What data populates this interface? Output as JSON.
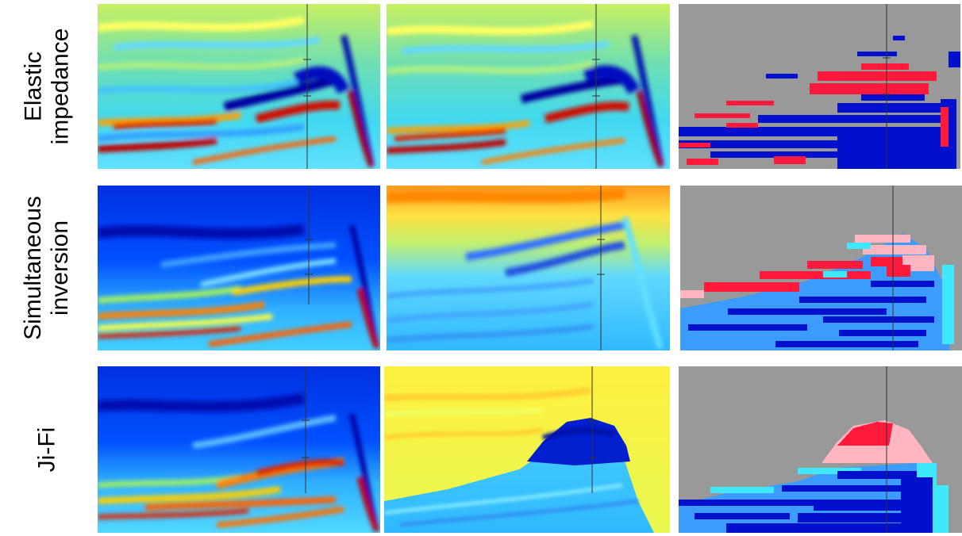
{
  "rows": [
    {
      "label_lines": [
        "Elastic",
        "impedance"
      ]
    },
    {
      "label_lines": [
        "Simultaneous",
        "inversion"
      ]
    },
    {
      "label_lines": [
        "Ji-Fi"
      ]
    }
  ],
  "colors": {
    "jet_dark_blue": "#00008f",
    "jet_blue": "#0030ff",
    "jet_cyan": "#00e0ff",
    "jet_yellow": "#ffff30",
    "jet_red": "#e02000",
    "jet_dark_red": "#8f0000",
    "facies_gray": "#999999",
    "facies_dark_blue": "#0010cc",
    "facies_red": "#ff1a3c",
    "facies_pink": "#ffb6c1",
    "facies_light_blue": "#3c9cff",
    "facies_cyan": "#40e8ff",
    "well_line": "#333333"
  }
}
